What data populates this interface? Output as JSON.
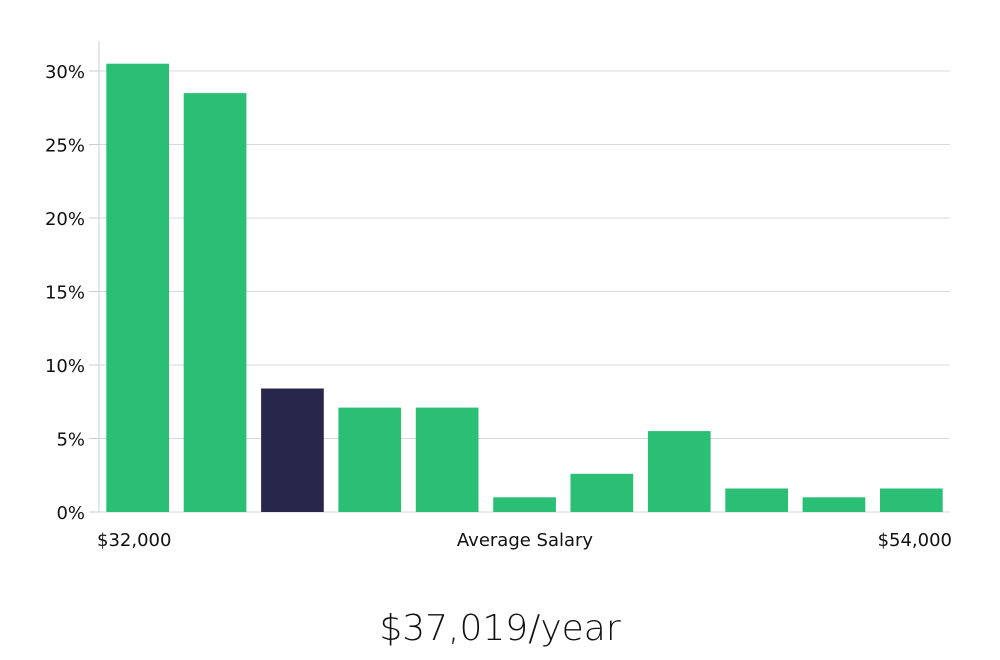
{
  "chart_data": {
    "type": "bar",
    "values": [
      30.5,
      28.5,
      8.4,
      7.1,
      7.1,
      1.0,
      2.6,
      5.5,
      1.6,
      1.0,
      1.6
    ],
    "highlight_index": 2,
    "ylim": [
      0,
      32
    ],
    "yticks": [
      0,
      5,
      10,
      15,
      20,
      25,
      30
    ],
    "ytick_suffix": "%",
    "xlabel_left": "$32,000",
    "xlabel": "Average Salary",
    "xlabel_right": "$54,000",
    "colors": {
      "bar": "#2abf74",
      "highlight": "#28264a",
      "grid": "#d9d9d9",
      "axis": "#cccccc"
    }
  },
  "summary": {
    "salary_text": "$37,019/year"
  }
}
